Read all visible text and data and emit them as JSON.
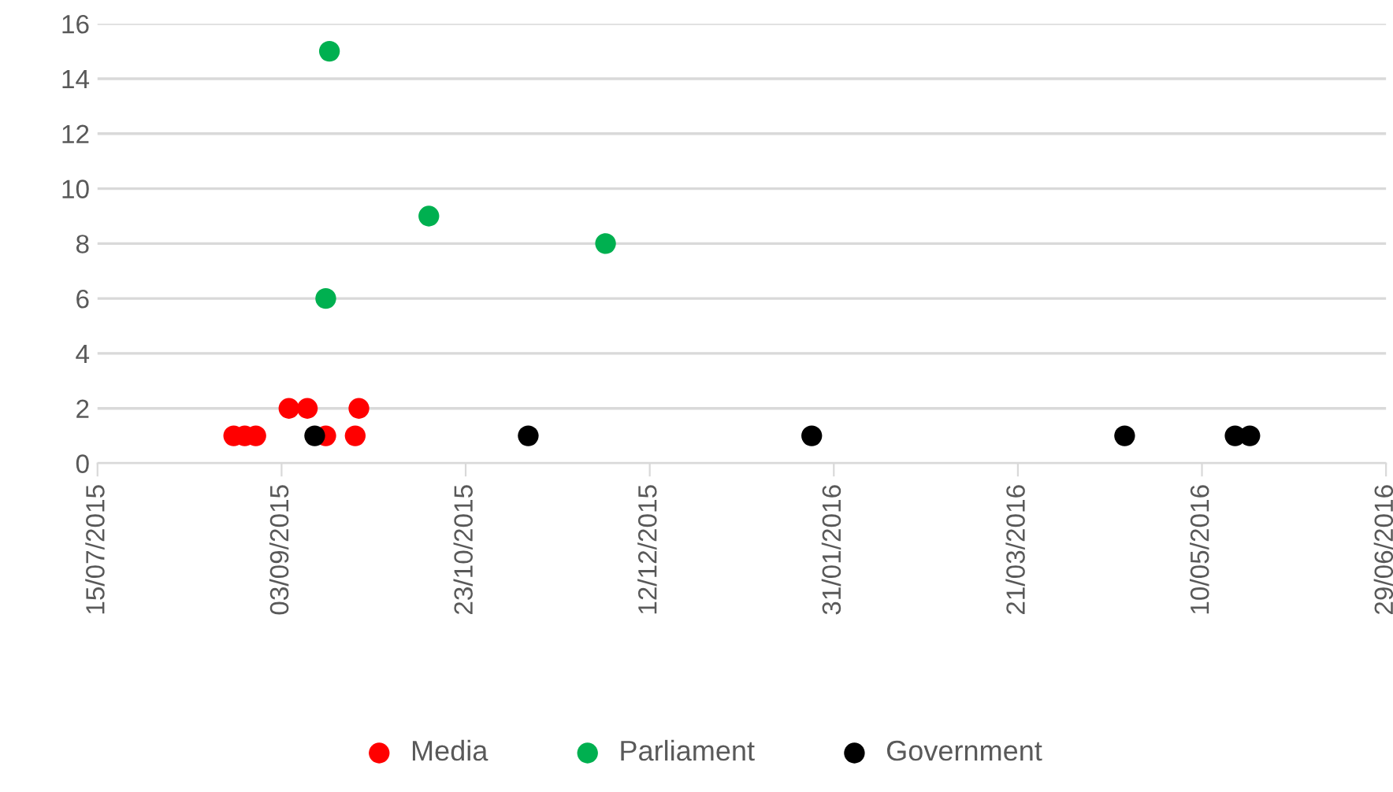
{
  "chart_data": {
    "type": "scatter",
    "series": [
      {
        "name": "Media",
        "color": "#ff0000",
        "x": [
          "2015-08-21",
          "2015-08-24",
          "2015-08-27",
          "2015-09-15",
          "2015-09-23",
          "2015-09-05",
          "2015-09-10",
          "2015-09-24"
        ],
        "values": [
          1,
          1,
          1,
          1,
          1,
          2,
          2,
          2
        ]
      },
      {
        "name": "Parliament",
        "color": "#00b050",
        "x": [
          "2015-09-16",
          "2015-09-15",
          "2015-10-13",
          "2015-11-30"
        ],
        "values": [
          15,
          6,
          9,
          8
        ]
      },
      {
        "name": "Government",
        "color": "#000000",
        "x": [
          "2015-09-12",
          "2015-11-09",
          "2016-01-25",
          "2016-04-19",
          "2016-05-19",
          "2016-05-23"
        ],
        "values": [
          1,
          1,
          1,
          1,
          1,
          1
        ]
      }
    ],
    "xlim": [
      "2015-07-15",
      "2016-06-29"
    ],
    "xticks": [
      {
        "value": "2015-07-15",
        "label": "15/07/2015"
      },
      {
        "value": "2015-09-03",
        "label": "03/09/2015"
      },
      {
        "value": "2015-10-23",
        "label": "23/10/2015"
      },
      {
        "value": "2015-12-12",
        "label": "12/12/2015"
      },
      {
        "value": "2016-01-31",
        "label": "31/01/2016"
      },
      {
        "value": "2016-03-21",
        "label": "21/03/2016"
      },
      {
        "value": "2016-05-10",
        "label": "10/05/2016"
      },
      {
        "value": "2016-06-29",
        "label": "29/06/2016"
      }
    ],
    "ylim": [
      0,
      16
    ],
    "yticks": [
      0,
      2,
      4,
      6,
      8,
      10,
      12,
      14,
      16
    ],
    "grid": "y",
    "legend": "bottom",
    "marker": "circle"
  }
}
